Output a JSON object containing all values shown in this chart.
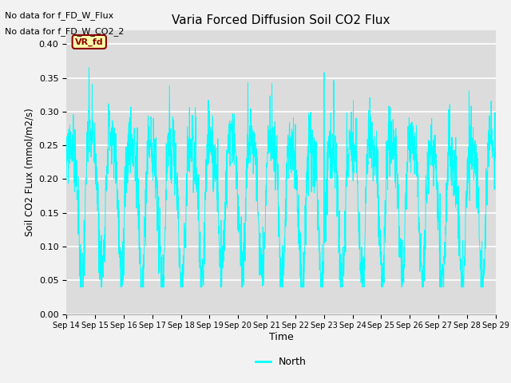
{
  "title": "Varia Forced Diffusion Soil CO2 Flux",
  "xlabel": "Time",
  "ylabel": "Soil CO2 FLux (mmol/m2/s)",
  "ylim": [
    0.0,
    0.42
  ],
  "yticks": [
    0.0,
    0.05,
    0.1,
    0.15,
    0.2,
    0.25,
    0.3,
    0.35,
    0.4
  ],
  "line_color": "#00FFFF",
  "fig_facecolor": "#f2f2f2",
  "axes_bg": "#dcdcdc",
  "text_annotations": [
    "No data for f_FD_W_Flux",
    "No data for f_FD_W_CO2_2"
  ],
  "legend_label": "North",
  "legend_box_facecolor": "#ffffaa",
  "legend_box_edge": "#8B0000",
  "legend_box_text": "VR_fd",
  "xticklabels": [
    "Sep 14",
    "Sep 15",
    "Sep 16",
    "Sep 17",
    "Sep 18",
    "Sep 19",
    "Sep 20",
    "Sep 21",
    "Sep 22",
    "Sep 23",
    "Sep 24",
    "Sep 25",
    "Sep 26",
    "Sep 27",
    "Sep 28",
    "Sep 29"
  ],
  "n_points": 2000,
  "seed": 99
}
